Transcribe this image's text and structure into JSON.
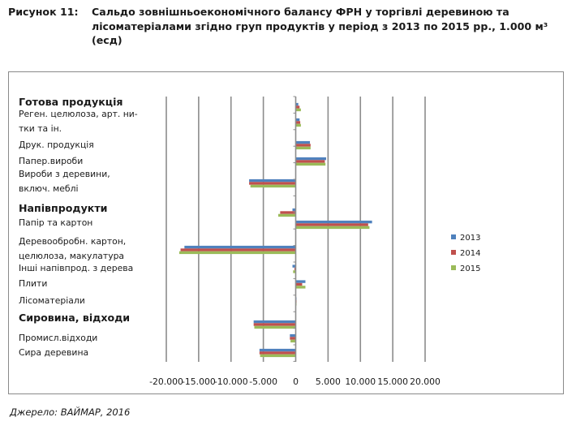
{
  "figure": {
    "label": "Рисунок 11:",
    "title": "Сальдо зовнішньоекономічного балансу ФРН у торгівлі деревиною та лісоматеріалами згідно груп продуктів у період з 2013 по 2015 рр., 1.000 м³ (есд)"
  },
  "source": "Джерело: ВАЙМАР, 2016",
  "chart_data": {
    "type": "bar",
    "orientation": "horizontal",
    "categories": [
      {
        "label_lines": [
          "Готова продукція"
        ],
        "group_header": true
      },
      {
        "label_lines": [
          "Реген. целюлоза, арт. ни-",
          "тки та ін."
        ]
      },
      {
        "label_lines": [
          "Друк. продукція"
        ]
      },
      {
        "label_lines": [
          "Папер.вироби"
        ]
      },
      {
        "label_lines": [
          "Вироби з деревини,",
          "включ. меблі"
        ]
      },
      {
        "label_lines": [
          "Напівпродукти"
        ],
        "group_header": true
      },
      {
        "label_lines": [
          "Папір та картон"
        ]
      },
      {
        "label_lines": [
          "Деревообробн. картон,",
          "целюлоза, макулатура"
        ]
      },
      {
        "label_lines": [
          "Інші напівпрод. з дерева"
        ]
      },
      {
        "label_lines": [
          "Плити"
        ]
      },
      {
        "label_lines": [
          "Лісоматеріали"
        ]
      },
      {
        "label_lines": [
          "Сировина, відходи"
        ],
        "group_header": true
      },
      {
        "label_lines": [
          "Промисл.відходи"
        ]
      },
      {
        "label_lines": [
          "Сира деревина"
        ]
      }
    ],
    "series": [
      {
        "name": "2013",
        "color": "#4f81bd",
        "values": [
          400,
          600,
          2200,
          4700,
          -7200,
          -500,
          11800,
          -17200,
          -500,
          1500,
          100,
          -6500,
          -900,
          -5600
        ]
      },
      {
        "name": "2014",
        "color": "#c0504d",
        "values": [
          600,
          700,
          2300,
          4500,
          -7200,
          -2400,
          11200,
          -17800,
          -200,
          1000,
          100,
          -6500,
          -900,
          -5600
        ]
      },
      {
        "name": "2015",
        "color": "#9bbb59",
        "values": [
          800,
          800,
          2300,
          4600,
          -7000,
          -2700,
          11400,
          -18000,
          -400,
          1500,
          100,
          -6400,
          -800,
          -5500
        ]
      }
    ],
    "x_ticks": [
      "-20.000",
      "-15.000",
      "-10.000",
      "-5.000",
      "0",
      "5.000",
      "10.000",
      "15.000",
      "20.000"
    ],
    "xlim": [
      -20000,
      20000
    ],
    "grid": true,
    "legend_position": "right"
  }
}
